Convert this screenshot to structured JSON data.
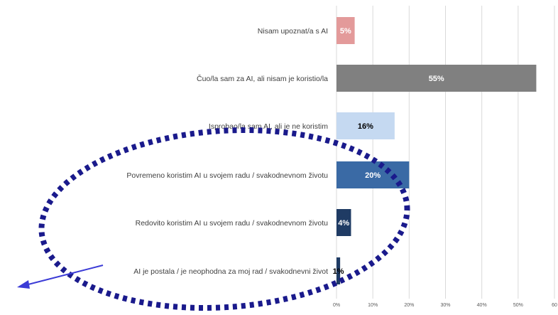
{
  "chart_data": {
    "type": "bar",
    "orientation": "horizontal",
    "categories": [
      "Nisam upoznat/a s AI",
      "Čuo/la sam za AI, ali nisam je koristio/la",
      "Isprobao/la sam AI, ali je ne koristim",
      "Povremeno koristim AI u svojem radu / svakodnevnom životu",
      "Redovito koristim AI u svojem radu / svakodnevnom životu",
      "AI je postala / je neophodna za moj rad / svakodnevni život"
    ],
    "values": [
      5,
      55,
      16,
      20,
      4,
      1
    ],
    "data_labels": [
      "5%",
      "55%",
      "16%",
      "20%",
      "4%",
      "1%"
    ],
    "bar_colors": [
      "#e39a9a",
      "#808080",
      "#c5d9f1",
      "#3a6aa5",
      "#1f3b64",
      "#1f3b64"
    ],
    "label_colors": [
      "#ffffff",
      "#ffffff",
      "#000000",
      "#ffffff",
      "#ffffff",
      "#000000"
    ],
    "xlim": [
      0,
      60
    ],
    "xticks": [
      0,
      10,
      20,
      30,
      40,
      50,
      60
    ],
    "xtick_labels": [
      "0%",
      "10%",
      "20%",
      "30%",
      "40%",
      "50%",
      "60"
    ],
    "grid": true,
    "legend": "none"
  },
  "annotation": {
    "shape": "dotted-ellipse",
    "color": "#1a1a8c",
    "arrow_color": "#3b3bd6"
  }
}
